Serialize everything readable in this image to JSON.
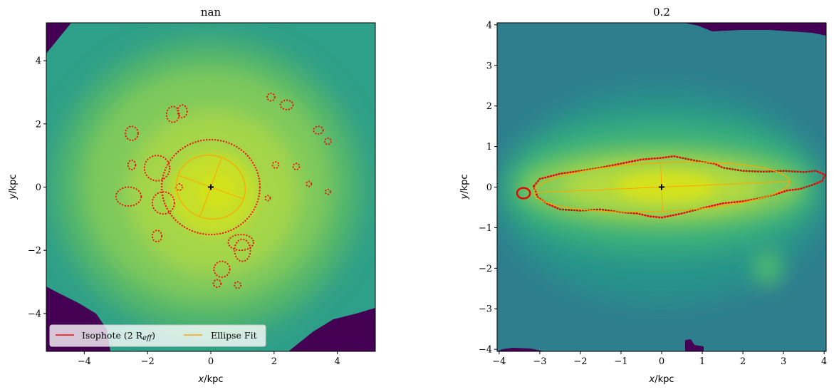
{
  "chart_data": [
    {
      "type": "heatmap",
      "title": "nan",
      "xlabel": "x/kpc",
      "ylabel": "y/kpc",
      "xlim": [
        -5.2,
        5.2
      ],
      "ylim": [
        -5.2,
        5.2
      ],
      "xticks": [
        -4,
        -2,
        0,
        2,
        4
      ],
      "yticks": [
        -4,
        -2,
        0,
        2,
        4
      ],
      "xtick_labels": [
        "−4",
        "−2",
        "0",
        "2",
        "4"
      ],
      "ytick_labels": [
        "−4",
        "−2",
        "0",
        "2",
        "4"
      ],
      "colormap": "viridis",
      "center": [
        0,
        0
      ],
      "legend": {
        "placement": "lower-left",
        "entries": [
          {
            "label_main": "Isophote (2 R",
            "label_sub": "eff",
            "label_end": ")",
            "color": "#ff0000"
          },
          {
            "label_main": "Ellipse Fit",
            "color": "#ffa500"
          }
        ]
      },
      "isophote_blobs": [
        [
          0,
          0,
          1.55,
          1.5
        ],
        [
          -2.5,
          1.7,
          0.2,
          0.22
        ],
        [
          -1.2,
          2.3,
          0.2,
          0.25
        ],
        [
          -0.9,
          2.4,
          0.15,
          0.2
        ],
        [
          2.4,
          2.6,
          0.2,
          0.15
        ],
        [
          1.9,
          2.85,
          0.12,
          0.12
        ],
        [
          3.4,
          1.8,
          0.15,
          0.12
        ],
        [
          3.7,
          1.45,
          0.1,
          0.1
        ],
        [
          -2.5,
          0.7,
          0.12,
          0.15
        ],
        [
          2.7,
          0.65,
          0.1,
          0.1
        ],
        [
          3.1,
          0.1,
          0.08,
          0.08
        ],
        [
          3.7,
          -0.15,
          0.08,
          0.08
        ],
        [
          -2.6,
          -0.3,
          0.4,
          0.3
        ],
        [
          -1.7,
          0.6,
          0.4,
          0.4
        ],
        [
          -1.5,
          -0.5,
          0.35,
          0.35
        ],
        [
          -1.7,
          -1.55,
          0.15,
          0.18
        ],
        [
          0.95,
          -1.75,
          0.4,
          0.25
        ],
        [
          1.0,
          -2.0,
          0.25,
          0.35
        ],
        [
          0.35,
          -2.6,
          0.25,
          0.25
        ],
        [
          0.2,
          -3.05,
          0.12,
          0.12
        ],
        [
          0.85,
          -3.1,
          0.1,
          0.1
        ],
        [
          1.8,
          -0.35,
          0.08,
          0.08
        ],
        [
          2.05,
          0.7,
          0.1,
          0.1
        ],
        [
          -1.0,
          0.0,
          0.1,
          0.1
        ]
      ],
      "ellipse_fit": {
        "cx": 0,
        "cy": 0,
        "a": 1.1,
        "b": 1.0,
        "angle_deg": -20
      }
    },
    {
      "type": "heatmap",
      "title": "0.2",
      "xlabel": "x/kpc",
      "ylabel": "y/kpc",
      "xlim": [
        -4.05,
        4.05
      ],
      "ylim": [
        -4.05,
        4.05
      ],
      "xticks": [
        -4,
        -3,
        -2,
        -1,
        0,
        1,
        2,
        3,
        4
      ],
      "yticks": [
        -4,
        -3,
        -2,
        -1,
        0,
        1,
        2,
        3,
        4
      ],
      "xtick_labels": [
        "−4",
        "−3",
        "−2",
        "−1",
        "0",
        "1",
        "2",
        "3",
        "4"
      ],
      "ytick_labels": [
        "−4",
        "−3",
        "−2",
        "−1",
        "0",
        "1",
        "2",
        "3",
        "4"
      ],
      "colormap": "viridis",
      "center": [
        0,
        0
      ],
      "isophote_outline": [
        [
          -3.15,
          0.02
        ],
        [
          -3.0,
          0.2
        ],
        [
          -2.5,
          0.33
        ],
        [
          -2.0,
          0.4
        ],
        [
          -1.5,
          0.48
        ],
        [
          -1.0,
          0.58
        ],
        [
          -0.5,
          0.68
        ],
        [
          0.0,
          0.72
        ],
        [
          0.3,
          0.76
        ],
        [
          0.6,
          0.7
        ],
        [
          1.0,
          0.62
        ],
        [
          1.3,
          0.58
        ],
        [
          1.5,
          0.48
        ],
        [
          2.0,
          0.4
        ],
        [
          2.5,
          0.38
        ],
        [
          3.0,
          0.4
        ],
        [
          3.5,
          0.37
        ],
        [
          3.8,
          0.4
        ],
        [
          4.02,
          0.3
        ],
        [
          3.95,
          0.15
        ],
        [
          3.7,
          0.05
        ],
        [
          3.4,
          -0.05
        ],
        [
          3.1,
          -0.08
        ],
        [
          2.8,
          -0.18
        ],
        [
          2.4,
          -0.28
        ],
        [
          2.0,
          -0.35
        ],
        [
          1.5,
          -0.4
        ],
        [
          1.0,
          -0.52
        ],
        [
          0.5,
          -0.65
        ],
        [
          0.0,
          -0.75
        ],
        [
          -0.3,
          -0.72
        ],
        [
          -0.6,
          -0.65
        ],
        [
          -1.0,
          -0.62
        ],
        [
          -1.5,
          -0.55
        ],
        [
          -2.0,
          -0.58
        ],
        [
          -2.5,
          -0.55
        ],
        [
          -2.8,
          -0.42
        ],
        [
          -3.05,
          -0.25
        ],
        [
          -3.15,
          0.02
        ]
      ],
      "isophote_small": [
        -3.4,
        -0.15,
        0.16,
        0.13
      ],
      "ellipse_fit": {
        "cx": 0,
        "cy": 0,
        "a": 3.15,
        "b": 0.6,
        "angle_deg": 2.5
      }
    }
  ]
}
